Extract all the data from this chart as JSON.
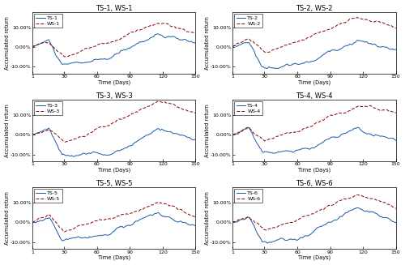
{
  "titles": [
    "TS-1, WS-1",
    "TS-2, WS-2",
    "TS-3, WS-3",
    "TS-4, WS-4",
    "TS-5, WS-5",
    "TS-6, WS-6"
  ],
  "ts_labels": [
    "TS-1",
    "TS-2",
    "TS-3",
    "TS-4",
    "TS-5",
    "TS-6"
  ],
  "ws_labels": [
    "WS-1",
    "WS-2",
    "WS-3",
    "WS-4",
    "WS-5",
    "WS-6"
  ],
  "xlabel": "Time (Days)",
  "ylabel": "Accumulated return",
  "xlim": [
    1,
    150
  ],
  "ylim": [
    -0.135,
    0.175
  ],
  "xticks": [
    1,
    30,
    60,
    90,
    120,
    150
  ],
  "yticks": [
    -0.1,
    0.0,
    0.1
  ],
  "ts_color": "#1a5ba6",
  "ws_color": "#8b0000",
  "ts_linewidth": 0.7,
  "ws_linewidth": 0.7,
  "legend_fontsize": 4.5,
  "title_fontsize": 6,
  "label_fontsize": 4.8,
  "tick_fontsize": 4.5,
  "background_color": "#ffffff"
}
